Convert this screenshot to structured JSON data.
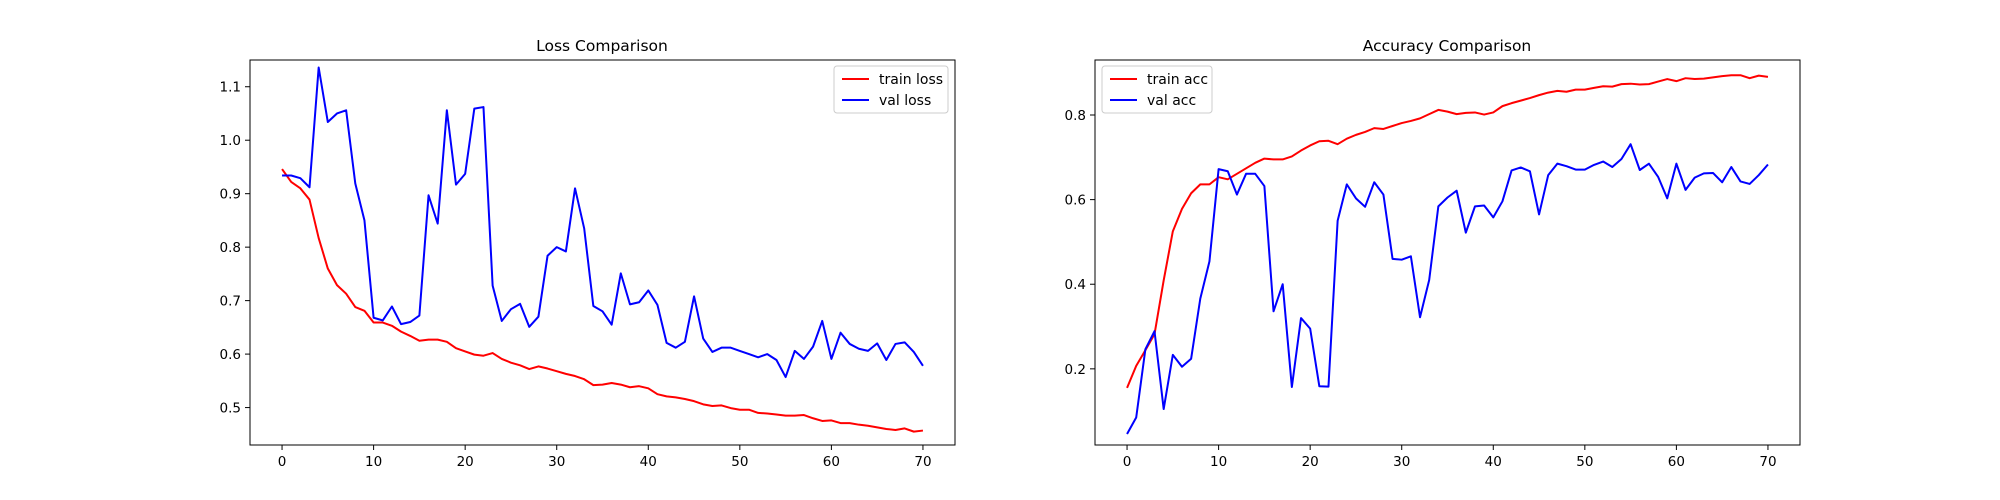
{
  "chart_data": [
    {
      "type": "line",
      "title": "Loss Comparison",
      "xlabel": "",
      "ylabel": "",
      "xlim": [
        -3.5,
        73.5
      ],
      "ylim": [
        0.43,
        1.15
      ],
      "xticks": [
        0,
        10,
        20,
        30,
        40,
        50,
        60,
        70
      ],
      "yticks": [
        0.5,
        0.6,
        0.7,
        0.8,
        0.9,
        1.0,
        1.1
      ],
      "ytick_labels": [
        "0.5",
        "0.6",
        "0.7",
        "0.8",
        "0.9",
        "1.0",
        "1.1"
      ],
      "grid": false,
      "legend_position": "top-right",
      "series": [
        {
          "name": "train loss",
          "color": "#ff0000",
          "values": [
            0.946,
            0.922,
            0.91,
            0.889,
            0.817,
            0.76,
            0.729,
            0.713,
            0.688,
            0.681,
            0.659,
            0.659,
            0.653,
            0.642,
            0.634,
            0.625,
            0.627,
            0.627,
            0.623,
            0.611,
            0.605,
            0.599,
            0.597,
            0.602,
            0.591,
            0.584,
            0.579,
            0.572,
            0.577,
            0.573,
            0.568,
            0.563,
            0.559,
            0.553,
            0.542,
            0.543,
            0.546,
            0.543,
            0.538,
            0.54,
            0.536,
            0.525,
            0.521,
            0.519,
            0.516,
            0.512,
            0.506,
            0.503,
            0.504,
            0.499,
            0.496,
            0.496,
            0.49,
            0.489,
            0.487,
            0.485,
            0.485,
            0.486,
            0.48,
            0.475,
            0.476,
            0.471,
            0.471,
            0.468,
            0.466,
            0.463,
            0.46,
            0.458,
            0.461,
            0.455,
            0.457
          ]
        },
        {
          "name": "val loss",
          "color": "#0000ff",
          "values": [
            0.934,
            0.934,
            0.929,
            0.912,
            1.136,
            1.034,
            1.05,
            1.056,
            0.919,
            0.85,
            0.668,
            0.663,
            0.689,
            0.656,
            0.66,
            0.672,
            0.897,
            0.844,
            1.056,
            0.917,
            0.937,
            1.059,
            1.062,
            0.728,
            0.662,
            0.684,
            0.694,
            0.651,
            0.67,
            0.784,
            0.8,
            0.792,
            0.91,
            0.835,
            0.69,
            0.68,
            0.655,
            0.751,
            0.693,
            0.697,
            0.719,
            0.692,
            0.621,
            0.612,
            0.623,
            0.708,
            0.629,
            0.604,
            0.612,
            0.612,
            0.606,
            0.6,
            0.594,
            0.6,
            0.589,
            0.557,
            0.606,
            0.591,
            0.614,
            0.662,
            0.591,
            0.64,
            0.619,
            0.61,
            0.606,
            0.62,
            0.589,
            0.619,
            0.622,
            0.604,
            0.578
          ]
        }
      ]
    },
    {
      "type": "line",
      "title": "Accuracy Comparison",
      "xlabel": "",
      "ylabel": "",
      "xlim": [
        -3.5,
        73.5
      ],
      "ylim": [
        0.02,
        0.93
      ],
      "xticks": [
        0,
        10,
        20,
        30,
        40,
        50,
        60,
        70
      ],
      "yticks": [
        0.2,
        0.4,
        0.6,
        0.8
      ],
      "ytick_labels": [
        "0.2",
        "0.4",
        "0.6",
        "0.8"
      ],
      "grid": false,
      "legend_position": "top-left",
      "series": [
        {
          "name": "train acc",
          "color": "#ff0000",
          "values": [
            0.155,
            0.207,
            0.244,
            0.282,
            0.409,
            0.525,
            0.578,
            0.615,
            0.636,
            0.636,
            0.653,
            0.648,
            0.661,
            0.674,
            0.687,
            0.697,
            0.695,
            0.695,
            0.702,
            0.716,
            0.728,
            0.738,
            0.739,
            0.731,
            0.744,
            0.753,
            0.76,
            0.769,
            0.767,
            0.774,
            0.781,
            0.786,
            0.792,
            0.802,
            0.812,
            0.808,
            0.802,
            0.805,
            0.806,
            0.801,
            0.806,
            0.821,
            0.828,
            0.834,
            0.84,
            0.847,
            0.853,
            0.857,
            0.855,
            0.86,
            0.86,
            0.864,
            0.868,
            0.867,
            0.873,
            0.874,
            0.872,
            0.873,
            0.879,
            0.885,
            0.88,
            0.887,
            0.885,
            0.886,
            0.889,
            0.892,
            0.894,
            0.894,
            0.887,
            0.893,
            0.89
          ]
        },
        {
          "name": "val acc",
          "color": "#0000ff",
          "values": [
            0.046,
            0.085,
            0.246,
            0.289,
            0.105,
            0.233,
            0.205,
            0.224,
            0.366,
            0.454,
            0.672,
            0.667,
            0.612,
            0.661,
            0.661,
            0.632,
            0.336,
            0.4,
            0.157,
            0.32,
            0.295,
            0.159,
            0.158,
            0.55,
            0.636,
            0.603,
            0.583,
            0.641,
            0.612,
            0.46,
            0.458,
            0.466,
            0.322,
            0.41,
            0.584,
            0.605,
            0.621,
            0.522,
            0.584,
            0.586,
            0.558,
            0.596,
            0.669,
            0.676,
            0.667,
            0.565,
            0.658,
            0.685,
            0.679,
            0.671,
            0.671,
            0.682,
            0.69,
            0.677,
            0.696,
            0.731,
            0.67,
            0.685,
            0.654,
            0.603,
            0.685,
            0.623,
            0.652,
            0.662,
            0.663,
            0.641,
            0.677,
            0.643,
            0.637,
            0.658,
            0.683
          ]
        }
      ]
    }
  ]
}
